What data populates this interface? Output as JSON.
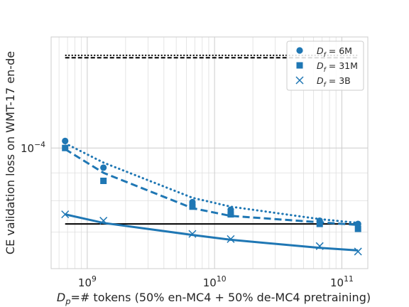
{
  "chart_data": {
    "type": "scatter",
    "title": "",
    "xlabel_parts": [
      "D",
      "p",
      "=# tokens (50% en-MC4 + 50% de-MC4 pretraining)"
    ],
    "ylabel": "CE validation loss on WMT-17 en-de",
    "x_scale": "log",
    "y_scale": "log",
    "xlim": [
      520000000.0,
      160000000000.0
    ],
    "ylim": [
      6e-05,
      0.00016
    ],
    "x_ticks": [
      {
        "value": 1000000000.0,
        "base": "10",
        "exp": "9"
      },
      {
        "value": 10000000000.0,
        "base": "10",
        "exp": "10"
      },
      {
        "value": 100000000000.0,
        "base": "10",
        "exp": "11"
      }
    ],
    "y_ticks": [
      {
        "value": 0.0001,
        "base": "10",
        "exp": "−4"
      }
    ],
    "grid": true,
    "legend_position": "top-right",
    "color": "#1f77b4",
    "series": [
      {
        "name_parts": [
          "D",
          "f",
          " = 6M"
        ],
        "marker": "circle",
        "points": [
          [
            670000000.0,
            0.000103
          ],
          [
            1340000000.0,
            9.2e-05
          ],
          [
            6700000000.0,
            7.95e-05
          ],
          [
            13400000000.0,
            7.7e-05
          ],
          [
            67000000000.0,
            7.35e-05
          ],
          [
            134000000000.0,
            7.25e-05
          ]
        ],
        "fit": [
          [
            670000000.0,
            0.000102
          ],
          [
            1340000000.0,
            9.4e-05
          ],
          [
            6700000000.0,
            8.1e-05
          ],
          [
            13400000000.0,
            7.8e-05
          ],
          [
            67000000000.0,
            7.4e-05
          ],
          [
            134000000000.0,
            7.28e-05
          ]
        ],
        "fit_style": "dotted"
      },
      {
        "name_parts": [
          "D",
          "f",
          " = 31M"
        ],
        "marker": "square",
        "points": [
          [
            670000000.0,
            0.0001
          ],
          [
            1340000000.0,
            8.7e-05
          ],
          [
            6700000000.0,
            7.8e-05
          ],
          [
            13400000000.0,
            7.55e-05
          ],
          [
            67000000000.0,
            7.25e-05
          ],
          [
            134000000000.0,
            7.1e-05
          ]
        ],
        "fit": [
          [
            670000000.0,
            9.95e-05
          ],
          [
            1340000000.0,
            9e-05
          ],
          [
            6700000000.0,
            7.75e-05
          ],
          [
            13400000000.0,
            7.5e-05
          ],
          [
            67000000000.0,
            7.3e-05
          ],
          [
            134000000000.0,
            7.22e-05
          ]
        ],
        "fit_style": "dashed"
      },
      {
        "name_parts": [
          "D",
          "f",
          " = 3B"
        ],
        "marker": "x",
        "points": [
          [
            670000000.0,
            7.55e-05
          ],
          [
            1340000000.0,
            7.35e-05
          ],
          [
            6700000000.0,
            6.95e-05
          ],
          [
            13400000000.0,
            6.8e-05
          ],
          [
            67000000000.0,
            6.6e-05
          ],
          [
            134000000000.0,
            6.45e-05
          ]
        ],
        "fit": [
          [
            670000000.0,
            7.55e-05
          ],
          [
            1340000000.0,
            7.28e-05
          ],
          [
            6700000000.0,
            6.92e-05
          ],
          [
            13400000000.0,
            6.78e-05
          ],
          [
            67000000000.0,
            6.55e-05
          ],
          [
            134000000000.0,
            6.48e-05
          ]
        ],
        "fit_style": "solid"
      }
    ],
    "reference_lines": [
      {
        "y": 7.25e-05,
        "x_range": [
          670000000.0,
          134000000000.0
        ],
        "color": "#000000",
        "style": "solid"
      },
      {
        "y": 0.000148,
        "x_range": [
          670000000.0,
          134000000000.0
        ],
        "color": "#000000",
        "style": "dotted"
      },
      {
        "y": 0.0001465,
        "x_range": [
          670000000.0,
          134000000000.0
        ],
        "color": "#000000",
        "style": "dashed"
      }
    ]
  }
}
